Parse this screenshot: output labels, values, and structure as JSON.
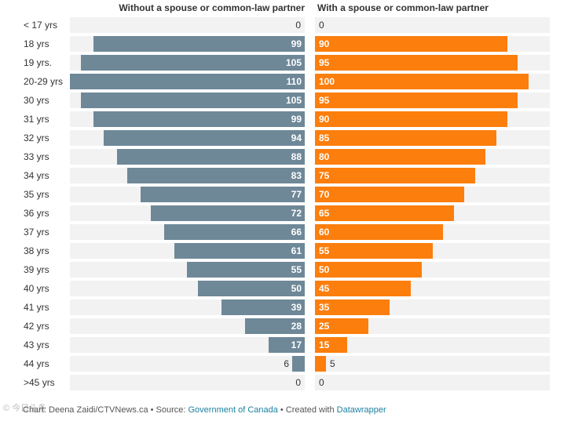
{
  "chart_data": {
    "type": "bar",
    "title": "",
    "categories": [
      "< 17 yrs",
      "18 yrs",
      "19 yrs.",
      "20-29 yrs",
      "30 yrs",
      "31 yrs",
      "32 yrs",
      "33 yrs",
      "34 yrs",
      "35 yrs",
      "36 yrs",
      "37 yrs",
      "38 yrs",
      "39 yrs",
      "40 yrs",
      "41 yrs",
      "42 yrs",
      "43 yrs",
      "44 yrs",
      ">45 yrs"
    ],
    "series": [
      {
        "name": "Without a spouse or common-law partner",
        "color": "#6e8898",
        "values": [
          0,
          99,
          105,
          110,
          105,
          99,
          94,
          88,
          83,
          77,
          72,
          66,
          61,
          55,
          50,
          39,
          28,
          17,
          6,
          0
        ]
      },
      {
        "name": "With a spouse or common-law partner",
        "color": "#fc7e0d",
        "values": [
          0,
          90,
          95,
          100,
          95,
          90,
          85,
          80,
          75,
          70,
          65,
          60,
          55,
          50,
          45,
          35,
          25,
          15,
          5,
          0
        ]
      }
    ],
    "xlim": [
      0,
      110
    ],
    "grid": false,
    "legend": "column-headers"
  },
  "footer": {
    "prefix": "Chart: Deena Zaidi/CTVNews.ca • Source: ",
    "source_link": "Government of Canada",
    "mid": " • Created with ",
    "tool_link": "Datawrapper"
  },
  "watermark": "© 今日头条"
}
